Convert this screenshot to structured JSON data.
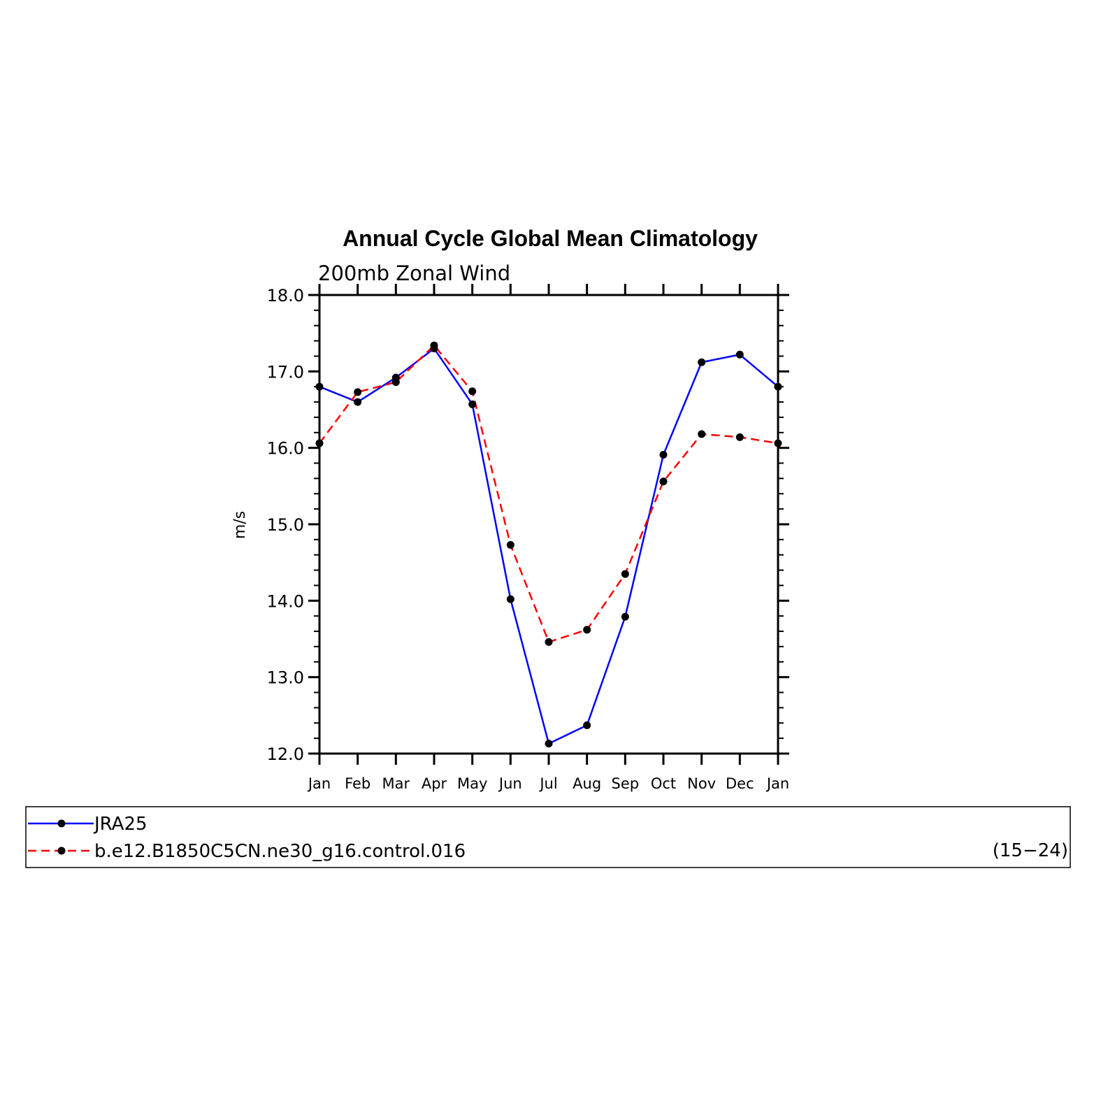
{
  "chart_data": {
    "type": "line",
    "title": "Annual Cycle Global Mean Climatology",
    "subtitle": "200mb Zonal Wind",
    "ylabel": "m/s",
    "xlabel": "",
    "categories": [
      "Jan",
      "Feb",
      "Mar",
      "Apr",
      "May",
      "Jun",
      "Jul",
      "Aug",
      "Sep",
      "Oct",
      "Nov",
      "Dec",
      "Jan"
    ],
    "ylim": [
      12.0,
      18.0
    ],
    "yticks": [
      "12.0",
      "13.0",
      "14.0",
      "15.0",
      "16.0",
      "17.0",
      "18.0"
    ],
    "grid": false,
    "legend_position": "below",
    "series": [
      {
        "name": "JRA25",
        "color": "#0000ff",
        "dash": "solid",
        "marker": "dot",
        "values": [
          16.8,
          16.6,
          16.92,
          17.3,
          16.57,
          14.02,
          12.13,
          12.37,
          13.79,
          15.91,
          17.12,
          17.22,
          16.8
        ]
      },
      {
        "name": "b.e12.B1850C5CN.ne30_g16.control.016",
        "color": "#ff0000",
        "dash": "dashed",
        "marker": "dot",
        "values": [
          16.06,
          16.73,
          16.86,
          17.34,
          16.74,
          14.73,
          13.46,
          13.62,
          14.35,
          15.56,
          16.18,
          16.14,
          16.06
        ]
      }
    ],
    "legend_note": "(15−24)"
  }
}
